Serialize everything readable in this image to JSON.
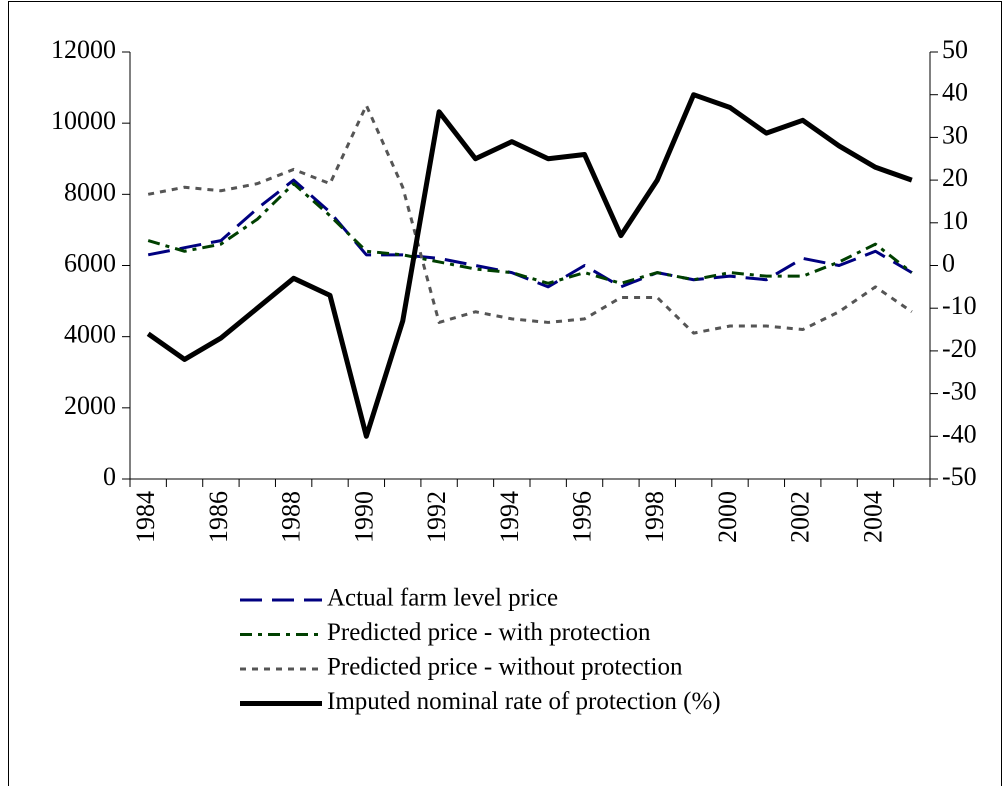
{
  "chart_data": {
    "type": "line",
    "categories": [
      "1984",
      null,
      "1986",
      null,
      "1988",
      null,
      "1990",
      null,
      "1992",
      null,
      "1994",
      null,
      "1996",
      null,
      "1998",
      null,
      "2000",
      null,
      "2002",
      null,
      "2004",
      null
    ],
    "series": [
      {
        "name": "Actual farm level price",
        "color": "#000080",
        "dash": "22,10",
        "width": 3,
        "values": [
          6300,
          6500,
          6700,
          7600,
          8400,
          7500,
          6300,
          6300,
          6200,
          6000,
          5800,
          5400,
          6000,
          5400,
          5800,
          5600,
          5700,
          5600,
          6200,
          6000,
          6400,
          5800
        ]
      },
      {
        "name": "Predicted price - with protection",
        "color": "#004000",
        "dash": "12,6,4,6",
        "width": 3,
        "values": [
          6700,
          6400,
          6600,
          7300,
          8300,
          7400,
          6400,
          6300,
          6100,
          5900,
          5800,
          5500,
          5800,
          5500,
          5800,
          5600,
          5800,
          5700,
          5700,
          6100,
          6600,
          5800
        ]
      },
      {
        "name": "Predicted price - without protection",
        "color": "#555555",
        "dash": "6,6",
        "width": 3,
        "values": [
          8000,
          8200,
          8100,
          8300,
          8700,
          8300,
          10500,
          8200,
          4400,
          4700,
          4500,
          4400,
          4500,
          5100,
          5100,
          4100,
          4300,
          4300,
          4200,
          4700,
          5400,
          4700
        ]
      },
      {
        "name": "Imputed nominal rate of protection (%)",
        "color": "#000000",
        "dash": "none",
        "width": 5,
        "axis": "y2",
        "values": [
          -16,
          -22,
          -17,
          -10,
          -3,
          -7,
          -40,
          -13,
          36,
          25,
          29,
          25,
          26,
          7,
          20,
          40,
          37,
          31,
          34,
          28,
          23,
          20
        ]
      }
    ],
    "ylim": [
      0,
      12000
    ],
    "yticks": [
      0,
      2000,
      4000,
      6000,
      8000,
      10000,
      12000
    ],
    "y2lim": [
      -50,
      50
    ],
    "y2ticks": [
      -50,
      -40,
      -30,
      -20,
      -10,
      0,
      10,
      20,
      30,
      40,
      50
    ]
  }
}
